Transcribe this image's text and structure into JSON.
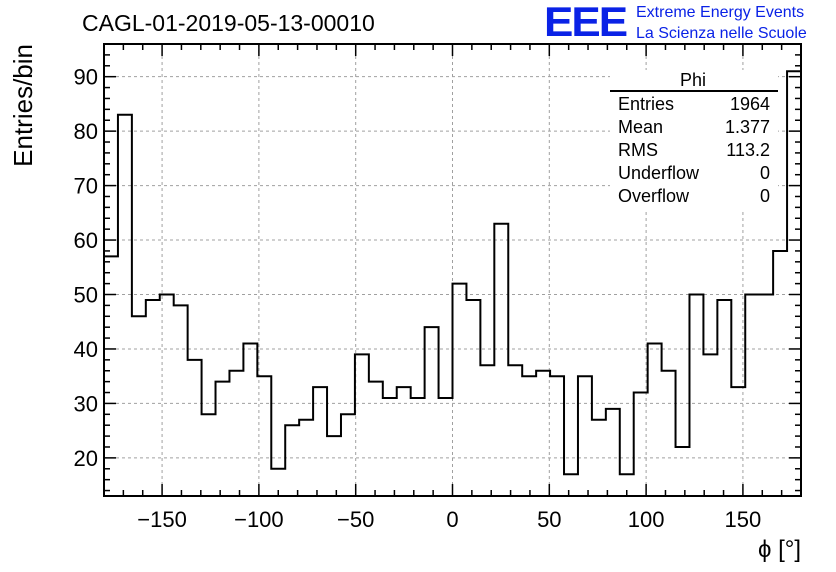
{
  "header": {
    "run_title": "CAGL-01-2019-05-13-00010",
    "logo_text": "EEE",
    "logo_line1": "Extreme Energy Events",
    "logo_line2": "La Scienza nelle Scuole"
  },
  "colors": {
    "logo": "#0a22e6",
    "histogram_line": "#000000",
    "grid": "#a0a0a0"
  },
  "chart_data": {
    "type": "histogram",
    "xlabel": "ϕ [°]",
    "ylabel": "Entries/bin",
    "xlim": [
      -180,
      180
    ],
    "ylim": [
      13,
      96
    ],
    "bin_width": 7.2,
    "bin_edges_start": -180,
    "xticks": [
      -150,
      -100,
      -50,
      0,
      50,
      100,
      150
    ],
    "xtick_labels": [
      "−150",
      "−100",
      "−50",
      "0",
      "50",
      "100",
      "150"
    ],
    "yticks": [
      20,
      30,
      40,
      50,
      60,
      70,
      80,
      90
    ],
    "ytick_labels": [
      "20",
      "30",
      "40",
      "50",
      "60",
      "70",
      "80",
      "90"
    ],
    "grid": true,
    "values": [
      57,
      83,
      46,
      49,
      50,
      48,
      38,
      28,
      34,
      36,
      41,
      35,
      18,
      26,
      27,
      33,
      24,
      28,
      39,
      34,
      31,
      33,
      31,
      44,
      31,
      52,
      49,
      37,
      63,
      37,
      35,
      36,
      35,
      17,
      35,
      27,
      29,
      17,
      32,
      41,
      36,
      22,
      50,
      39,
      49,
      33,
      50,
      50,
      58,
      91
    ],
    "stats_box": {
      "title": "Phi",
      "placement": "top-right",
      "rows": [
        {
          "label": "Entries",
          "value": "1964"
        },
        {
          "label": "Mean",
          "value": "1.377"
        },
        {
          "label": "RMS",
          "value": "113.2"
        },
        {
          "label": "Underflow",
          "value": "0"
        },
        {
          "label": "Overflow",
          "value": "0"
        }
      ]
    }
  }
}
